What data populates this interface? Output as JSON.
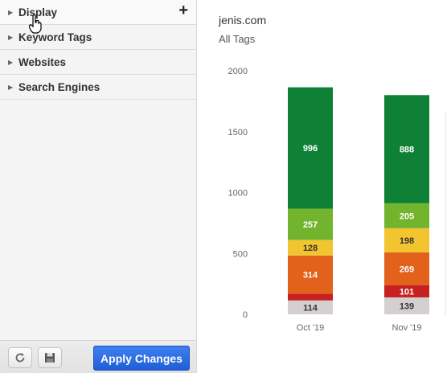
{
  "sidebar": {
    "items": [
      {
        "label": "Display",
        "expandable": true
      },
      {
        "label": "Keyword Tags"
      },
      {
        "label": "Websites"
      },
      {
        "label": "Search Engines"
      }
    ],
    "footer": {
      "refresh_icon": "refresh-icon",
      "save_icon": "save-icon",
      "apply_label": "Apply Changes"
    }
  },
  "chart": {
    "title": "jenis.com",
    "subtitle": "All Tags"
  },
  "chart_data": {
    "type": "bar",
    "stacked": true,
    "categories": [
      "Oct '19",
      "Nov '19"
    ],
    "ylim": [
      0,
      2000
    ],
    "yticks": [
      0,
      500,
      1000,
      1500,
      2000
    ],
    "grid": false,
    "series": [
      {
        "color": "#d4d0d0",
        "values": [
          114,
          139
        ],
        "label_dark": true
      },
      {
        "color": "#c62020",
        "values": [
          55,
          101
        ]
      },
      {
        "color": "#e2621b",
        "values": [
          314,
          269
        ]
      },
      {
        "color": "#f2c530",
        "values": [
          128,
          198
        ],
        "label_dark": true
      },
      {
        "color": "#72b42d",
        "values": [
          257,
          205
        ]
      },
      {
        "color": "#0e8136",
        "values": [
          996,
          888
        ]
      }
    ],
    "data_labels": [
      [
        "114",
        "139"
      ],
      [
        "",
        "101"
      ],
      [
        "314",
        "269"
      ],
      [
        "128",
        "198"
      ],
      [
        "257",
        "205"
      ],
      [
        "996",
        "888"
      ]
    ]
  }
}
